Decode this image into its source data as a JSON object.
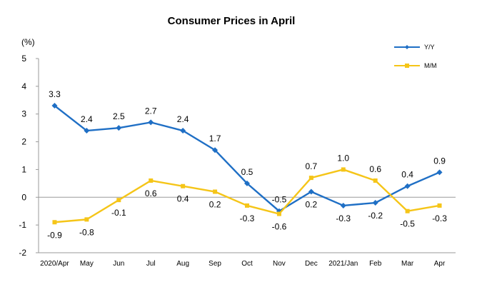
{
  "chart_data": {
    "type": "line",
    "title": "Consumer Prices in April",
    "unit_label": "(%)",
    "categories": [
      "2020/Apr",
      "May",
      "Jun",
      "Jul",
      "Aug",
      "Sep",
      "Oct",
      "Nov",
      "Dec",
      "2021/Jan",
      "Feb",
      "Mar",
      "Apr"
    ],
    "ylim": [
      -2,
      5
    ],
    "yticks": [
      "-2",
      "-1",
      "0",
      "1",
      "2",
      "3",
      "4",
      "5"
    ],
    "legend_position": "top-right",
    "series": [
      {
        "name": "Y/Y",
        "color": "#1f6fc5",
        "marker": "diamond",
        "values": [
          3.3,
          2.4,
          2.5,
          2.7,
          2.4,
          1.7,
          0.5,
          -0.5,
          0.2,
          -0.3,
          -0.2,
          0.4,
          0.9
        ],
        "labels": [
          "3.3",
          "2.4",
          "2.5",
          "2.7",
          "2.4",
          "1.7",
          "0.5",
          "-0.5",
          "0.2",
          "-0.3",
          "-0.2",
          "0.4",
          "0.9"
        ]
      },
      {
        "name": "M/M",
        "color": "#f5c518",
        "marker": "square",
        "values": [
          -0.9,
          -0.8,
          -0.1,
          0.6,
          0.4,
          0.2,
          -0.3,
          -0.6,
          0.7,
          1.0,
          0.6,
          -0.5,
          -0.3
        ],
        "labels": [
          "-0.9",
          "-0.8",
          "-0.1",
          "0.6",
          "0.4",
          "0.2",
          "-0.3",
          "-0.6",
          "0.7",
          "1.0",
          "0.6",
          "-0.5",
          "-0.3"
        ]
      }
    ]
  }
}
